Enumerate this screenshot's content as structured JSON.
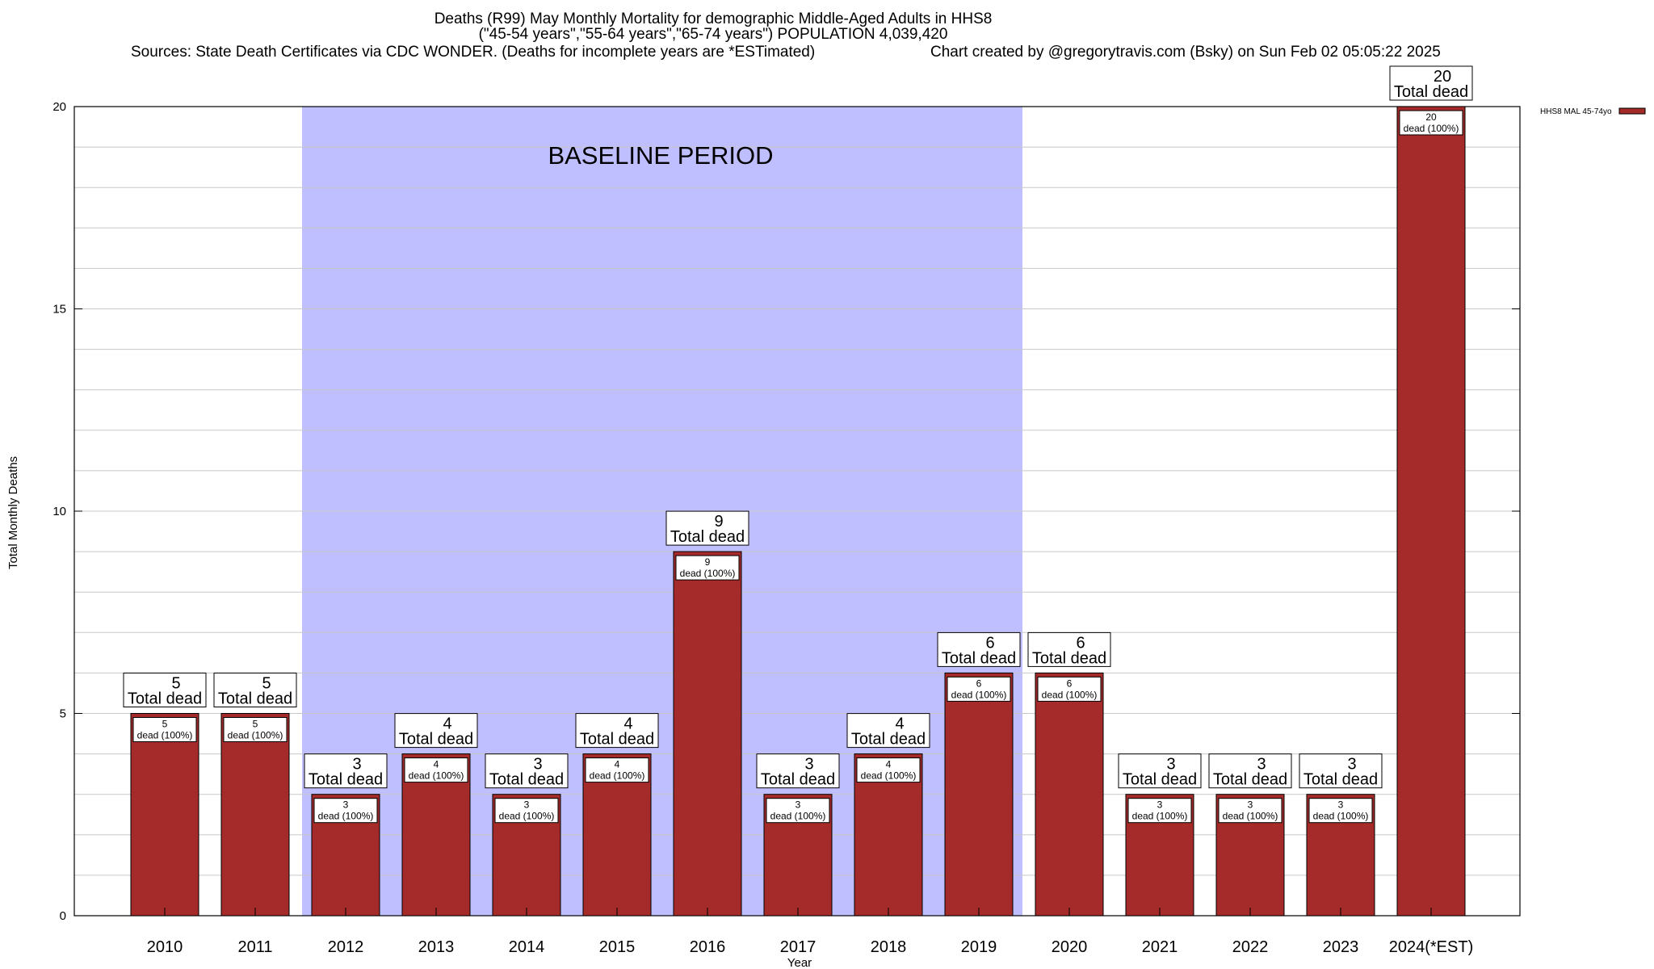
{
  "header": {
    "title_line1": "Deaths (R99) May Monthly Mortality for demographic Middle-Aged Adults in HHS8",
    "title_line2": "(\"45-54 years\",\"55-64 years\",\"65-74 years\") POPULATION 4,039,420",
    "sources": "Sources: State Death Certificates via CDC WONDER. (Deaths for incomplete years are *ESTimated)",
    "credit": "Chart created by @gregorytravis.com (Bsky) on Sun Feb 02 05:05:22 2025"
  },
  "chart_data": {
    "type": "bar",
    "xlabel": "Year",
    "ylabel": "Total Monthly Deaths",
    "ylim": [
      0,
      20
    ],
    "yticks": [
      "0",
      "5",
      "10",
      "15",
      "20"
    ],
    "grid": true,
    "categories": [
      "2010",
      "2011",
      "2012",
      "2013",
      "2014",
      "2015",
      "2016",
      "2017",
      "2018",
      "2019",
      "2020",
      "2021",
      "2022",
      "2023",
      "2024(*EST)"
    ],
    "series": [
      {
        "name": "HHS8 MAL 45-74yo",
        "color": "#a52a2a",
        "values": [
          5,
          5,
          3,
          4,
          3,
          4,
          9,
          3,
          4,
          6,
          6,
          3,
          3,
          3,
          20
        ]
      }
    ],
    "total_label": "Total dead",
    "inner_label": "dead (100%)",
    "baseline": {
      "label": "BASELINE PERIOD",
      "from": "2012",
      "to": "2019",
      "color": "#bfbfff"
    },
    "legend_position": "top-right"
  }
}
